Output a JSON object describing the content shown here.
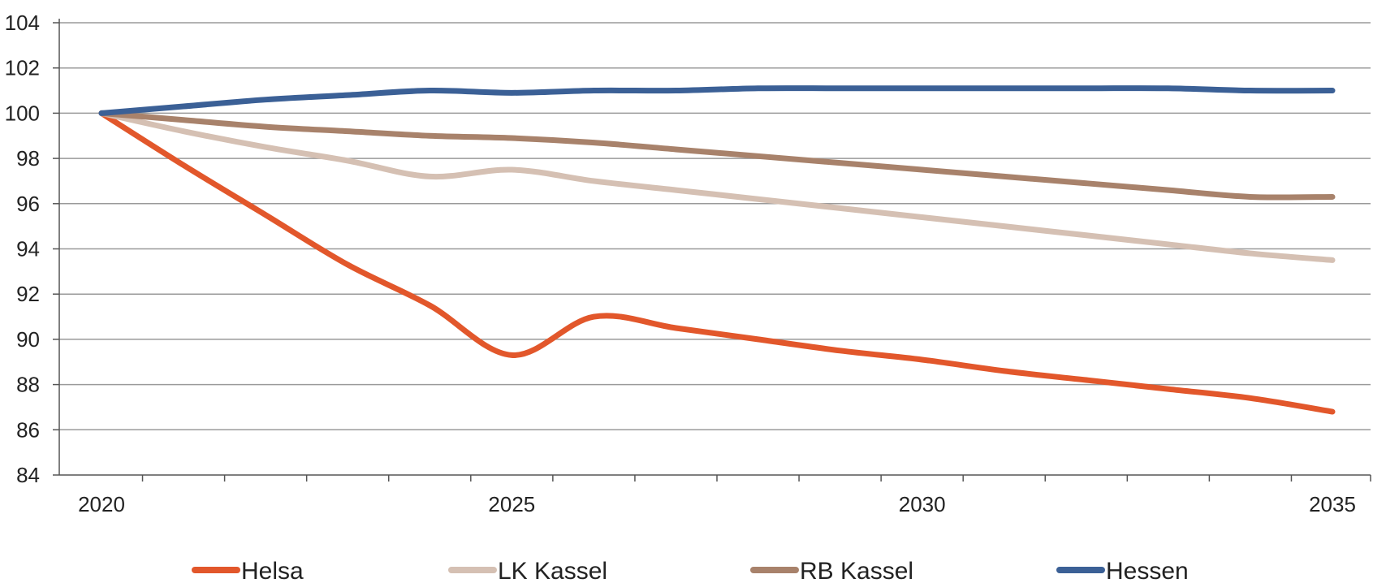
{
  "chart_data": {
    "type": "line",
    "title": "",
    "xlabel": "",
    "ylabel": "",
    "x": [
      2020,
      2021,
      2022,
      2023,
      2024,
      2025,
      2026,
      2027,
      2028,
      2029,
      2030,
      2031,
      2032,
      2033,
      2034,
      2035
    ],
    "xlim": [
      2020,
      2035
    ],
    "x_tick_labels": [
      "2020",
      "2025",
      "2030",
      "2035"
    ],
    "ylim": [
      84,
      104
    ],
    "y_tick_labels": [
      "84",
      "86",
      "88",
      "90",
      "92",
      "94",
      "96",
      "98",
      "100",
      "102",
      "104"
    ],
    "grid": "horizontal",
    "legend_position": "bottom",
    "series": [
      {
        "name": "Helsa",
        "color": "#E2572B",
        "values": [
          100.0,
          97.7,
          95.5,
          93.3,
          91.5,
          89.3,
          91.0,
          90.5,
          90.0,
          89.5,
          89.1,
          88.6,
          88.2,
          87.8,
          87.4,
          86.8
        ]
      },
      {
        "name": "LK Kassel",
        "color": "#D5C0B3",
        "values": [
          100.0,
          99.2,
          98.5,
          97.9,
          97.2,
          97.5,
          97.0,
          96.6,
          96.2,
          95.8,
          95.4,
          95.0,
          94.6,
          94.2,
          93.8,
          93.5
        ]
      },
      {
        "name": "RB Kassel",
        "color": "#A8826B",
        "values": [
          100.0,
          99.7,
          99.4,
          99.2,
          99.0,
          98.9,
          98.7,
          98.4,
          98.1,
          97.8,
          97.5,
          97.2,
          96.9,
          96.6,
          96.3,
          96.3
        ]
      },
      {
        "name": "Hessen",
        "color": "#3B6096",
        "values": [
          100.0,
          100.3,
          100.6,
          100.8,
          101.0,
          100.9,
          101.0,
          101.0,
          101.1,
          101.1,
          101.1,
          101.1,
          101.1,
          101.1,
          101.0,
          101.0
        ]
      }
    ]
  }
}
